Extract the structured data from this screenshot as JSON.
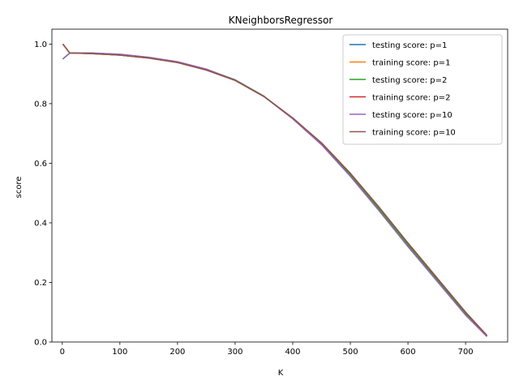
{
  "chart_data": {
    "type": "line",
    "title": "KNeighborsRegressor",
    "xlabel": "K",
    "ylabel": "score",
    "xlim": [
      -18,
      773
    ],
    "ylim": [
      0,
      1.05
    ],
    "xticks": [
      0,
      100,
      200,
      300,
      400,
      500,
      600,
      700
    ],
    "yticks": [
      0.0,
      0.2,
      0.4,
      0.6,
      0.8,
      1.0
    ],
    "grid": false,
    "legend_position": "top-right",
    "x": [
      1,
      13,
      50,
      100,
      150,
      200,
      250,
      300,
      350,
      400,
      450,
      500,
      550,
      600,
      650,
      700,
      737
    ],
    "series": [
      {
        "name": "testing score: p=1",
        "color": "#1f77b4",
        "values": [
          0.95,
          0.97,
          0.97,
          0.965,
          0.955,
          0.94,
          0.915,
          0.88,
          0.825,
          0.75,
          0.665,
          0.56,
          0.445,
          0.325,
          0.21,
          0.095,
          0.02
        ]
      },
      {
        "name": "training score: p=1",
        "color": "#ff7f0e",
        "values": [
          1.0,
          0.97,
          0.968,
          0.963,
          0.953,
          0.938,
          0.913,
          0.878,
          0.824,
          0.752,
          0.668,
          0.566,
          0.452,
          0.332,
          0.216,
          0.1,
          0.022
        ]
      },
      {
        "name": "testing score: p=2",
        "color": "#2ca02c",
        "values": [
          0.95,
          0.97,
          0.97,
          0.965,
          0.955,
          0.94,
          0.915,
          0.88,
          0.825,
          0.75,
          0.665,
          0.56,
          0.445,
          0.325,
          0.21,
          0.095,
          0.02
        ]
      },
      {
        "name": "training score: p=2",
        "color": "#d62728",
        "values": [
          1.0,
          0.97,
          0.968,
          0.963,
          0.953,
          0.938,
          0.913,
          0.878,
          0.824,
          0.752,
          0.668,
          0.566,
          0.452,
          0.332,
          0.216,
          0.1,
          0.022
        ]
      },
      {
        "name": "testing score: p=10",
        "color": "#9467bd",
        "values": [
          0.95,
          0.97,
          0.97,
          0.966,
          0.956,
          0.941,
          0.916,
          0.879,
          0.824,
          0.749,
          0.662,
          0.556,
          0.44,
          0.32,
          0.205,
          0.09,
          0.018
        ]
      },
      {
        "name": "training score: p=10",
        "color": "#8c564b",
        "values": [
          1.0,
          0.97,
          0.968,
          0.963,
          0.953,
          0.938,
          0.913,
          0.878,
          0.824,
          0.752,
          0.668,
          0.566,
          0.452,
          0.332,
          0.216,
          0.1,
          0.022
        ]
      }
    ]
  }
}
